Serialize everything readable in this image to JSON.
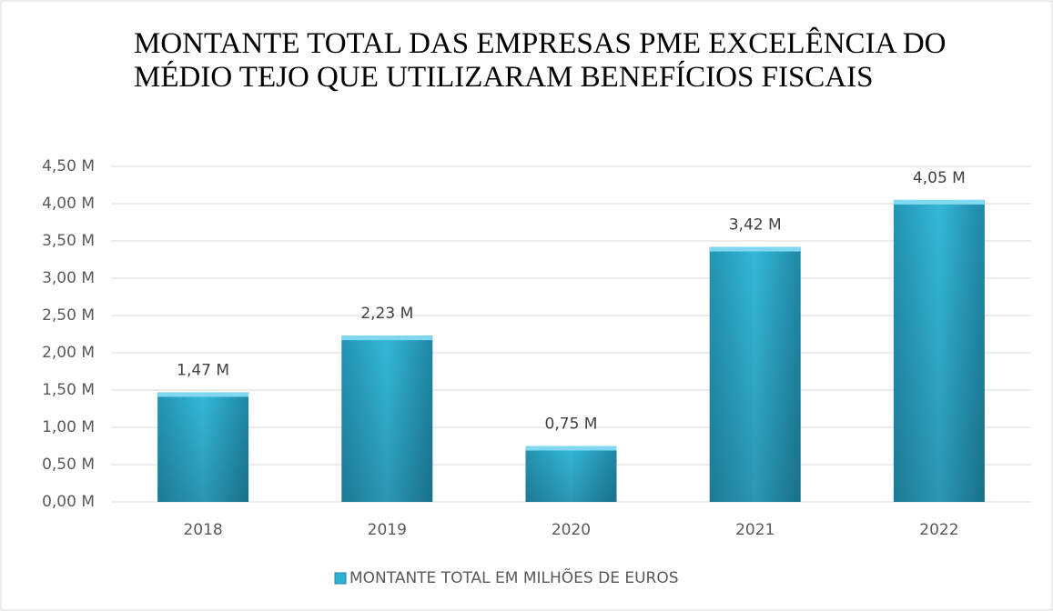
{
  "chart_data": {
    "type": "bar",
    "title": [
      "MONTANTE TOTAL DAS EMPRESAS PME EXCELÊNCIA DO",
      "MÉDIO TEJO QUE UTILIZARAM BENEFÍCIOS FISCAIS"
    ],
    "categories": [
      "2018",
      "2019",
      "2020",
      "2021",
      "2022"
    ],
    "series": [
      {
        "name": "MONTANTE TOTAL EM MILHÕES DE EUROS",
        "color": "#2fb1d3",
        "values": [
          1.47,
          2.23,
          0.75,
          3.42,
          4.05
        ],
        "value_labels": [
          "1,47  M",
          "2,23  M",
          "0,75  M",
          "3,42  M",
          "4,05  M"
        ]
      }
    ],
    "ylim": [
      0,
      4.5
    ],
    "yticks": [
      {
        "value": 0,
        "label": "0,00  M"
      },
      {
        "value": 0.5,
        "label": "0,50  M"
      },
      {
        "value": 1,
        "label": "1,00  M"
      },
      {
        "value": 1.5,
        "label": "1,50  M"
      },
      {
        "value": 2,
        "label": "2,00  M"
      },
      {
        "value": 2.5,
        "label": "2,50  M"
      },
      {
        "value": 3,
        "label": "3,00  M"
      },
      {
        "value": 3.5,
        "label": "3,50  M"
      },
      {
        "value": 4,
        "label": "4,00  M"
      },
      {
        "value": 4.5,
        "label": "4,50  M"
      }
    ],
    "grid": true,
    "legend": "bottom"
  }
}
